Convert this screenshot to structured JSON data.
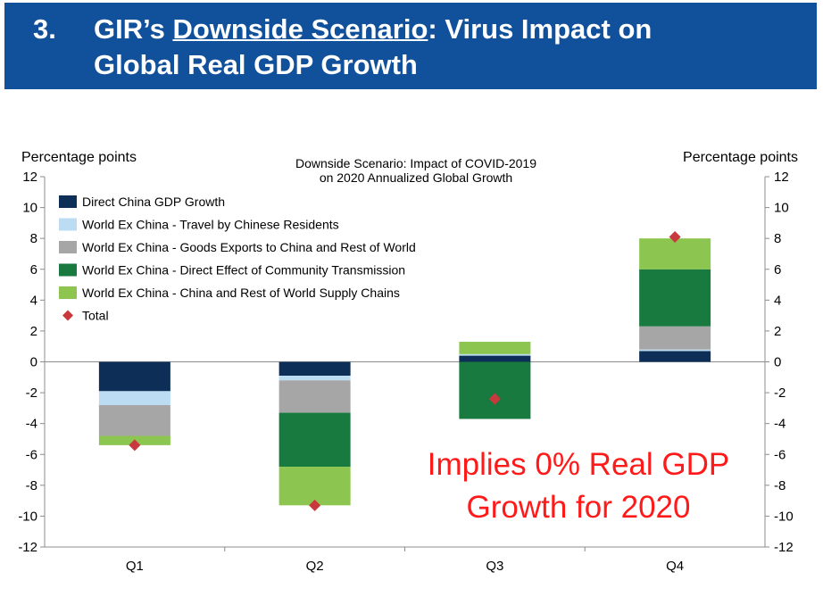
{
  "header": {
    "number": "3.",
    "title_prefix": "GIR’s ",
    "title_underlined": "Downside Scenario",
    "title_suffix": ": Virus Impact on",
    "title_line2": "Global Real GDP Growth"
  },
  "colors": {
    "banner": "#11509a",
    "direct_china": "#0d2e56",
    "travel": "#bcdcf4",
    "goods_exports": "#a6a6a6",
    "community": "#197a40",
    "supply_chains": "#8cc650",
    "total": "#c8383c",
    "annotation": "#ff1a1a"
  },
  "chart_data": {
    "type": "bar",
    "stacked": true,
    "title": "Downside Scenario: Impact of COVID-2019 on 2020 Annualized Global Growth",
    "title_line1": "Downside Scenario: Impact of COVID-2019",
    "title_line2": "on 2020 Annualized Global Growth",
    "ylabel_left": "Percentage  points",
    "ylabel_right": "Percentage  points",
    "ylim": [
      -12,
      12
    ],
    "yticks": [
      12,
      10,
      8,
      6,
      4,
      2,
      0,
      -2,
      -4,
      -6,
      -8,
      -10,
      -12
    ],
    "categories": [
      "Q1",
      "Q2",
      "Q3",
      "Q4"
    ],
    "series": [
      {
        "name": "Direct China GDP Growth",
        "color_key": "direct_china",
        "values": [
          -1.9,
          -0.9,
          0.4,
          0.7
        ]
      },
      {
        "name": "World Ex China - Travel by Chinese Residents",
        "color_key": "travel",
        "values": [
          -0.9,
          -0.3,
          0.1,
          0.1
        ]
      },
      {
        "name": "World Ex China - Goods Exports to China and Rest of World",
        "color_key": "goods_exports",
        "values": [
          -2.0,
          -2.1,
          0.0,
          1.5
        ]
      },
      {
        "name": "World Ex China - Direct Effect of Community Transmission",
        "color_key": "community",
        "values": [
          0.0,
          -3.5,
          -3.7,
          3.7
        ]
      },
      {
        "name": "World Ex China - China and Rest of World Supply Chains",
        "color_key": "supply_chains",
        "values": [
          -0.6,
          -2.5,
          0.8,
          2.0
        ]
      }
    ],
    "total": {
      "name": "Total",
      "color_key": "total",
      "values": [
        -5.4,
        -9.3,
        -2.4,
        8.1
      ]
    },
    "annotation": {
      "line1": "Implies 0% Real GDP",
      "line2": "Growth for 2020"
    }
  }
}
